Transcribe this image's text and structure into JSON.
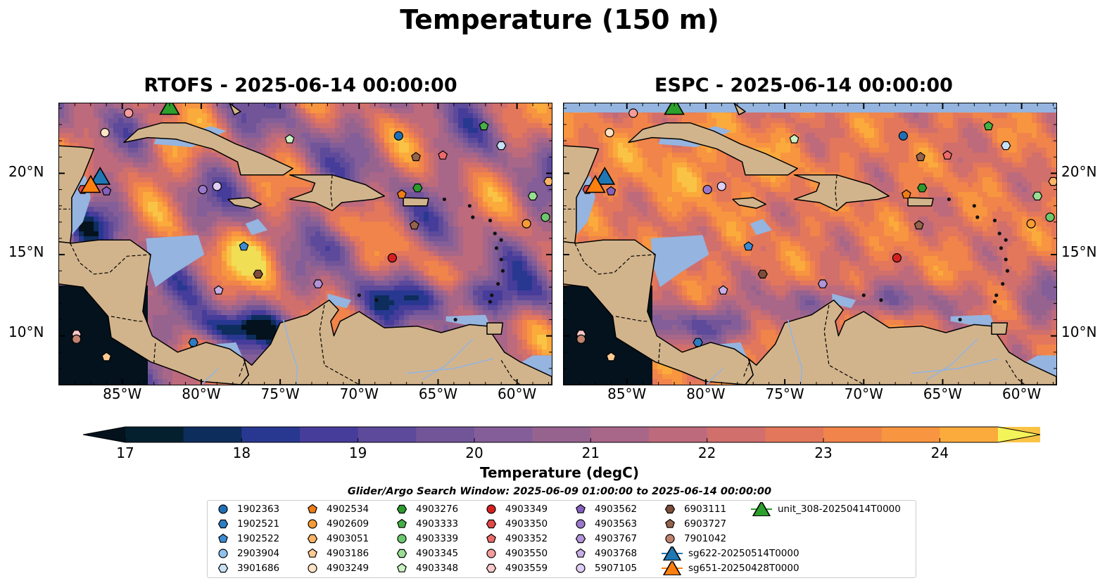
{
  "figure_title": "Temperature (150 m)",
  "panels": [
    {
      "title": "RTOFS - 2025-06-14 00:00:00",
      "model": "RTOFS"
    },
    {
      "title": "ESPC - 2025-06-14 00:00:00",
      "model": "ESPC"
    }
  ],
  "map_extent": {
    "lon": [
      -89,
      -57.8
    ],
    "lat": [
      7,
      24.3
    ]
  },
  "lat_ticks": [
    {
      "value": 20,
      "label": "20°N"
    },
    {
      "value": 15,
      "label": "15°N"
    },
    {
      "value": 10,
      "label": "10°N"
    }
  ],
  "lon_ticks": [
    {
      "value": -85,
      "label": "85°W"
    },
    {
      "value": -80,
      "label": "80°W"
    },
    {
      "value": -75,
      "label": "75°W"
    },
    {
      "value": -70,
      "label": "70°W"
    },
    {
      "value": -65,
      "label": "65°W"
    },
    {
      "value": -60,
      "label": "60°W"
    }
  ],
  "colorbar": {
    "label": "Temperature (degC)",
    "min": 16.25,
    "max": 24.5,
    "step": 0.5,
    "ticks": [
      "17",
      "18",
      "19",
      "20",
      "21",
      "22",
      "23",
      "24"
    ],
    "tick_values": [
      17,
      18,
      19,
      20,
      21,
      22,
      23,
      24
    ],
    "extend": "both",
    "colors": [
      "#04202f",
      "#0d2d5c",
      "#283891",
      "#463c9a",
      "#5d4a9b",
      "#725599",
      "#845e98",
      "#96638f",
      "#a86688",
      "#bd6a7c",
      "#d06f6c",
      "#e3775c",
      "#f0844a",
      "#f89540",
      "#fbaa3c",
      "#f9c445",
      "#f0de55"
    ],
    "under_color": "#03121c",
    "over_color": "#f3f35a"
  },
  "search_window": "Glider/Argo Search Window: 2025-06-09 01:00:00 to 2025-06-14 00:00:00",
  "colors": {
    "land": "#d2b48c",
    "shallow_water": "#95b4df",
    "deep_ocean": "#03222f"
  },
  "legend": [
    {
      "label": "1902363",
      "shape": "circle",
      "color": "#1f6fb5"
    },
    {
      "label": "1902521",
      "shape": "hexagon",
      "color": "#2d7cc3"
    },
    {
      "label": "1902522",
      "shape": "pentagon",
      "color": "#3b8bd2"
    },
    {
      "label": "2903904",
      "shape": "circle",
      "color": "#8ec2ee"
    },
    {
      "label": "3901686",
      "shape": "hexagon",
      "color": "#c7e2f7"
    },
    {
      "label": "4902534",
      "shape": "pentagon",
      "color": "#ef7d16"
    },
    {
      "label": "4902609",
      "shape": "circle",
      "color": "#f79b35"
    },
    {
      "label": "4903051",
      "shape": "hexagon",
      "color": "#fbb365"
    },
    {
      "label": "4903186",
      "shape": "pentagon",
      "color": "#fdcb93"
    },
    {
      "label": "4903249",
      "shape": "circle",
      "color": "#fee3c4"
    },
    {
      "label": "4903276",
      "shape": "hexagon",
      "color": "#2c9a2c"
    },
    {
      "label": "4903333",
      "shape": "pentagon",
      "color": "#45b045"
    },
    {
      "label": "4903339",
      "shape": "circle",
      "color": "#6cc86c"
    },
    {
      "label": "4903345",
      "shape": "hexagon",
      "color": "#9ade94"
    },
    {
      "label": "4903348",
      "shape": "pentagon",
      "color": "#ccf2c4"
    },
    {
      "label": "4903349",
      "shape": "circle",
      "color": "#d62020"
    },
    {
      "label": "4903350",
      "shape": "hexagon",
      "color": "#e34848"
    },
    {
      "label": "4903352",
      "shape": "pentagon",
      "color": "#ee6a6a"
    },
    {
      "label": "4903550",
      "shape": "circle",
      "color": "#f59c9c"
    },
    {
      "label": "4903559",
      "shape": "hexagon",
      "color": "#f9c9c9"
    },
    {
      "label": "4903562",
      "shape": "pentagon",
      "color": "#8660be"
    },
    {
      "label": "4903563",
      "shape": "circle",
      "color": "#9b78cc"
    },
    {
      "label": "4903767",
      "shape": "hexagon",
      "color": "#b294d9"
    },
    {
      "label": "4903768",
      "shape": "pentagon",
      "color": "#c7afe6"
    },
    {
      "label": "5907105",
      "shape": "circle",
      "color": "#e0cdf3"
    },
    {
      "label": "6903111",
      "shape": "hexagon",
      "color": "#7d4e3a"
    },
    {
      "label": "6903727",
      "shape": "pentagon",
      "color": "#95634d"
    },
    {
      "label": "7901042",
      "shape": "circle",
      "color": "#c0826f"
    },
    {
      "label": "sg622-20250514T0000",
      "shape": "triangle",
      "color": "#1f77b4"
    },
    {
      "label": "sg651-20250428T0000",
      "shape": "triangle",
      "color": "#ff7f0e"
    },
    {
      "label": "unit_308-20250414T0000",
      "shape": "triangle",
      "color": "#2ca02c"
    }
  ],
  "markers": [
    {
      "id": "1902363",
      "lon": -67.5,
      "lat": 22.3
    },
    {
      "id": "1902521",
      "lon": -80.5,
      "lat": 9.6
    },
    {
      "id": "1902522",
      "lon": -77.3,
      "lat": 15.5
    },
    {
      "id": "2903904",
      "lon": -86.5,
      "lat": 19.7
    },
    {
      "id": "3901686",
      "lon": -61.0,
      "lat": 21.7
    },
    {
      "id": "4902534",
      "lon": -67.3,
      "lat": 18.7
    },
    {
      "id": "4902609",
      "lon": -59.4,
      "lat": 16.9
    },
    {
      "id": "4903051",
      "lon": -58.0,
      "lat": 19.5
    },
    {
      "id": "4903186",
      "lon": -86.0,
      "lat": 8.7
    },
    {
      "id": "4903249",
      "lon": -86.1,
      "lat": 22.5
    },
    {
      "id": "4903276",
      "lon": -66.3,
      "lat": 19.1
    },
    {
      "id": "4903333",
      "lon": -62.1,
      "lat": 22.9
    },
    {
      "id": "4903339",
      "lon": -58.2,
      "lat": 17.3
    },
    {
      "id": "4903345",
      "lon": -59.0,
      "lat": 18.6
    },
    {
      "id": "4903348",
      "lon": -74.4,
      "lat": 22.1
    },
    {
      "id": "4903349",
      "lon": -67.9,
      "lat": 14.8
    },
    {
      "id": "4903350",
      "lon": -87.5,
      "lat": 19.0
    },
    {
      "id": "4903352",
      "lon": -64.7,
      "lat": 21.1
    },
    {
      "id": "4903550",
      "lon": -84.6,
      "lat": 23.7
    },
    {
      "id": "4903559",
      "lon": -87.9,
      "lat": 10.1
    },
    {
      "id": "4903562",
      "lon": -86.0,
      "lat": 18.9
    },
    {
      "id": "4903563",
      "lon": -79.9,
      "lat": 19.0
    },
    {
      "id": "4903767",
      "lon": -72.6,
      "lat": 13.2
    },
    {
      "id": "4903768",
      "lon": -78.9,
      "lat": 12.8
    },
    {
      "id": "5907105",
      "lon": -79.0,
      "lat": 19.2
    },
    {
      "id": "6903111",
      "lon": -76.4,
      "lat": 13.8
    },
    {
      "id": "6903727",
      "lon": -66.4,
      "lat": 21.0
    },
    {
      "id": "6903727",
      "lon": -66.5,
      "lat": 16.8
    },
    {
      "id": "7901042",
      "lon": -87.9,
      "lat": 9.8
    },
    {
      "id": "sg622-20250514T0000",
      "lon": -86.4,
      "lat": 19.8
    },
    {
      "id": "sg651-20250428T0000",
      "lon": -87.0,
      "lat": 19.3
    },
    {
      "id": "unit_308-20250414T0000",
      "lon": -82.0,
      "lat": 24.1
    }
  ]
}
